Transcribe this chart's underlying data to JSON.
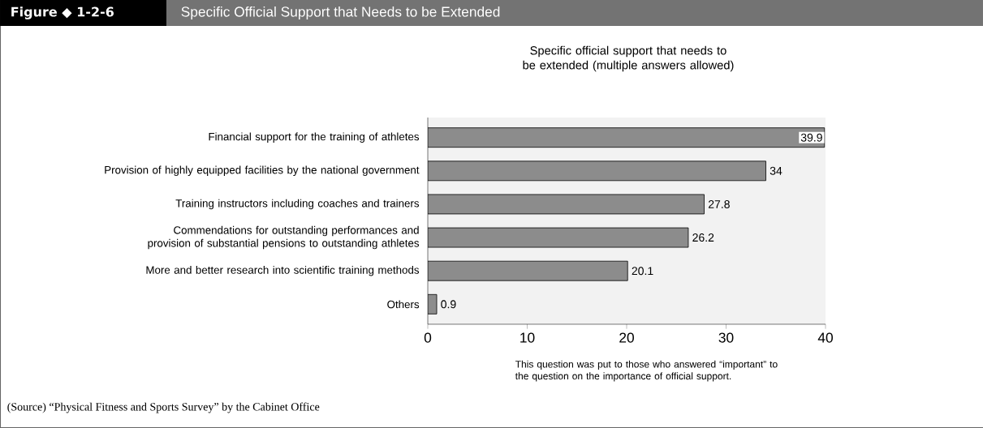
{
  "chart_data": {
    "type": "bar",
    "orientation": "horizontal",
    "title": "Specific Official Support that Needs to be Extended",
    "subtitle": "Specific official support that needs to be extended (multiple answers allowed)",
    "categories": [
      "Financial support for the training of athletes",
      "Provision of highly equipped facilities by the national government",
      "Training instructors including coaches and trainers",
      "Commendations for outstanding performances and provision of substantial pensions to outstanding athletes",
      "More and better research into scientific training methods",
      "Others"
    ],
    "values": [
      39.9,
      34,
      27.8,
      26.2,
      20.1,
      0.9
    ],
    "color": "#8c8c8c",
    "xlim": [
      0,
      40
    ],
    "xticks": [
      0,
      10,
      20,
      30,
      40
    ],
    "data_labels": true,
    "grid": false,
    "annotations": [
      "Figure ◆ 1-2-6",
      "This question was put to those who answered “important” to the question on the importance of official support.",
      "(Source) “Physical Fitness and Sports Survey” by the Cabinet Office"
    ]
  }
}
